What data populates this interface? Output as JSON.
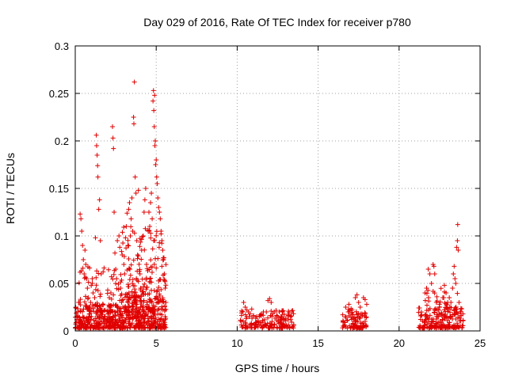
{
  "chart_data": {
    "type": "scatter",
    "title": "Day 029 of 2016, Rate Of TEC Index for receiver p780",
    "xlabel": "GPS time / hours",
    "ylabel": "ROTI / TECUs",
    "xlim": [
      0,
      25
    ],
    "ylim": [
      0,
      0.3
    ],
    "x_ticks": [
      "0",
      "5",
      "10",
      "15",
      "20",
      "25"
    ],
    "y_ticks": [
      "0",
      "0.05",
      "0.1",
      "0.15",
      "0.2",
      "0.25",
      "0.3"
    ],
    "grid": true,
    "marker": "plus",
    "point_color": "#e00000",
    "series": [
      {
        "points": [
          [
            0.1,
            0.012
          ],
          [
            0.15,
            0.02
          ],
          [
            0.2,
            0.01
          ],
          [
            0.25,
            0.03
          ],
          [
            0.3,
            0.123
          ],
          [
            0.35,
            0.118
          ],
          [
            0.4,
            0.105
          ],
          [
            0.45,
            0.09
          ],
          [
            0.5,
            0.075
          ],
          [
            0.55,
            0.06
          ],
          [
            0.6,
            0.085
          ],
          [
            0.65,
            0.07
          ],
          [
            0.7,
            0.055
          ],
          [
            0.75,
            0.045
          ],
          [
            0.8,
            0.035
          ],
          [
            0.85,
            0.025
          ],
          [
            0.9,
            0.018
          ],
          [
            0.95,
            0.03
          ],
          [
            1.0,
            0.015
          ],
          [
            1.05,
            0.055
          ],
          [
            1.1,
            0.04
          ],
          [
            1.2,
            0.035
          ],
          [
            1.25,
            0.098
          ],
          [
            1.3,
            0.206
          ],
          [
            1.32,
            0.195
          ],
          [
            1.35,
            0.185
          ],
          [
            1.38,
            0.174
          ],
          [
            1.4,
            0.162
          ],
          [
            1.45,
            0.128
          ],
          [
            1.5,
            0.138
          ],
          [
            1.55,
            0.095
          ],
          [
            1.6,
            0.06
          ],
          [
            1.7,
            0.02
          ],
          [
            1.8,
            0.015
          ],
          [
            2.0,
            0.012
          ],
          [
            2.1,
            0.035
          ],
          [
            2.2,
            0.04
          ],
          [
            2.3,
            0.215
          ],
          [
            2.33,
            0.203
          ],
          [
            2.36,
            0.192
          ],
          [
            2.4,
            0.125
          ],
          [
            2.45,
            0.082
          ],
          [
            2.5,
            0.065
          ],
          [
            2.55,
            0.055
          ],
          [
            2.6,
            0.095
          ],
          [
            2.7,
            0.1
          ],
          [
            2.75,
            0.088
          ],
          [
            2.8,
            0.045
          ],
          [
            2.9,
            0.08
          ],
          [
            3.0,
            0.07
          ],
          [
            3.05,
            0.06
          ],
          [
            3.1,
            0.098
          ],
          [
            3.15,
            0.11
          ],
          [
            3.2,
            0.124
          ],
          [
            3.25,
            0.09
          ],
          [
            3.3,
            0.128
          ],
          [
            3.35,
            0.135
          ],
          [
            3.4,
            0.1
          ],
          [
            3.45,
            0.118
          ],
          [
            3.5,
            0.14
          ],
          [
            3.55,
            0.105
          ],
          [
            3.6,
            0.225
          ],
          [
            3.62,
            0.218
          ],
          [
            3.65,
            0.262
          ],
          [
            3.7,
            0.162
          ],
          [
            3.75,
            0.145
          ],
          [
            3.8,
            0.095
          ],
          [
            3.85,
            0.08
          ],
          [
            3.9,
            0.148
          ],
          [
            4.0,
            0.06
          ],
          [
            4.05,
            0.045
          ],
          [
            4.1,
            0.085
          ],
          [
            4.2,
            0.1
          ],
          [
            4.25,
            0.125
          ],
          [
            4.3,
            0.138
          ],
          [
            4.35,
            0.15
          ],
          [
            4.4,
            0.07
          ],
          [
            4.5,
            0.105
          ],
          [
            4.55,
            0.125
          ],
          [
            4.6,
            0.11
          ],
          [
            4.65,
            0.135
          ],
          [
            4.7,
            0.145
          ],
          [
            4.75,
            0.118
          ],
          [
            4.8,
            0.242
          ],
          [
            4.83,
            0.253
          ],
          [
            4.85,
            0.232
          ],
          [
            4.88,
            0.215
          ],
          [
            4.9,
            0.248
          ],
          [
            4.92,
            0.195
          ],
          [
            4.94,
            0.2
          ],
          [
            4.96,
            0.175
          ],
          [
            5.0,
            0.18
          ],
          [
            5.03,
            0.162
          ],
          [
            5.06,
            0.155
          ],
          [
            5.1,
            0.14
          ],
          [
            5.15,
            0.13
          ],
          [
            5.2,
            0.125
          ],
          [
            5.25,
            0.118
          ],
          [
            5.3,
            0.105
          ],
          [
            5.35,
            0.095
          ],
          [
            5.4,
            0.085
          ],
          [
            5.45,
            0.075
          ],
          [
            5.5,
            0.06
          ],
          [
            5.55,
            0.045
          ],
          [
            5.6,
            0.03
          ],
          [
            10.4,
            0.03
          ],
          [
            10.5,
            0.025
          ],
          [
            10.6,
            0.022
          ],
          [
            10.7,
            0.02
          ],
          [
            10.8,
            0.018
          ],
          [
            10.9,
            0.023
          ],
          [
            11.0,
            0.016
          ],
          [
            11.2,
            0.015
          ],
          [
            11.5,
            0.018
          ],
          [
            11.8,
            0.02
          ],
          [
            11.9,
            0.032
          ],
          [
            12.0,
            0.034
          ],
          [
            12.1,
            0.03
          ],
          [
            12.2,
            0.018
          ],
          [
            12.6,
            0.02
          ],
          [
            12.7,
            0.015
          ],
          [
            13.0,
            0.013
          ],
          [
            13.3,
            0.015
          ],
          [
            16.7,
            0.025
          ],
          [
            16.9,
            0.028
          ],
          [
            17.1,
            0.022
          ],
          [
            17.3,
            0.035
          ],
          [
            17.4,
            0.038
          ],
          [
            17.5,
            0.03
          ],
          [
            17.6,
            0.025
          ],
          [
            17.8,
            0.035
          ],
          [
            17.9,
            0.033
          ],
          [
            18.0,
            0.028
          ],
          [
            21.6,
            0.04
          ],
          [
            21.7,
            0.045
          ],
          [
            21.8,
            0.065
          ],
          [
            21.9,
            0.06
          ],
          [
            22.0,
            0.05
          ],
          [
            22.1,
            0.07
          ],
          [
            22.15,
            0.068
          ],
          [
            22.2,
            0.06
          ],
          [
            22.3,
            0.03
          ],
          [
            22.5,
            0.025
          ],
          [
            22.7,
            0.035
          ],
          [
            22.8,
            0.048
          ],
          [
            22.9,
            0.04
          ],
          [
            23.0,
            0.03
          ],
          [
            23.1,
            0.035
          ],
          [
            23.2,
            0.03
          ],
          [
            23.3,
            0.045
          ],
          [
            23.35,
            0.06
          ],
          [
            23.4,
            0.068
          ],
          [
            23.45,
            0.055
          ],
          [
            23.5,
            0.05
          ],
          [
            23.55,
            0.088
          ],
          [
            23.6,
            0.095
          ],
          [
            23.62,
            0.112
          ],
          [
            23.65,
            0.085
          ],
          [
            23.7,
            0.03
          ]
        ],
        "dense_bands": [
          {
            "x": [
              0.0,
              5.6
            ],
            "y_min": 0.003,
            "y_max": 0.028,
            "count": 520
          },
          {
            "x": [
              0.2,
              5.6
            ],
            "y_min": 0.02,
            "y_max": 0.07,
            "count": 160
          },
          {
            "x": [
              2.8,
              5.5
            ],
            "y_min": 0.03,
            "y_max": 0.11,
            "count": 140
          },
          {
            "x": [
              10.2,
              13.5
            ],
            "y_min": 0.003,
            "y_max": 0.022,
            "count": 160
          },
          {
            "x": [
              16.5,
              18.0
            ],
            "y_min": 0.003,
            "y_max": 0.025,
            "count": 100
          },
          {
            "x": [
              21.2,
              24.0
            ],
            "y_min": 0.003,
            "y_max": 0.025,
            "count": 170
          },
          {
            "x": [
              21.6,
              23.6
            ],
            "y_min": 0.015,
            "y_max": 0.045,
            "count": 50
          }
        ]
      }
    ]
  }
}
